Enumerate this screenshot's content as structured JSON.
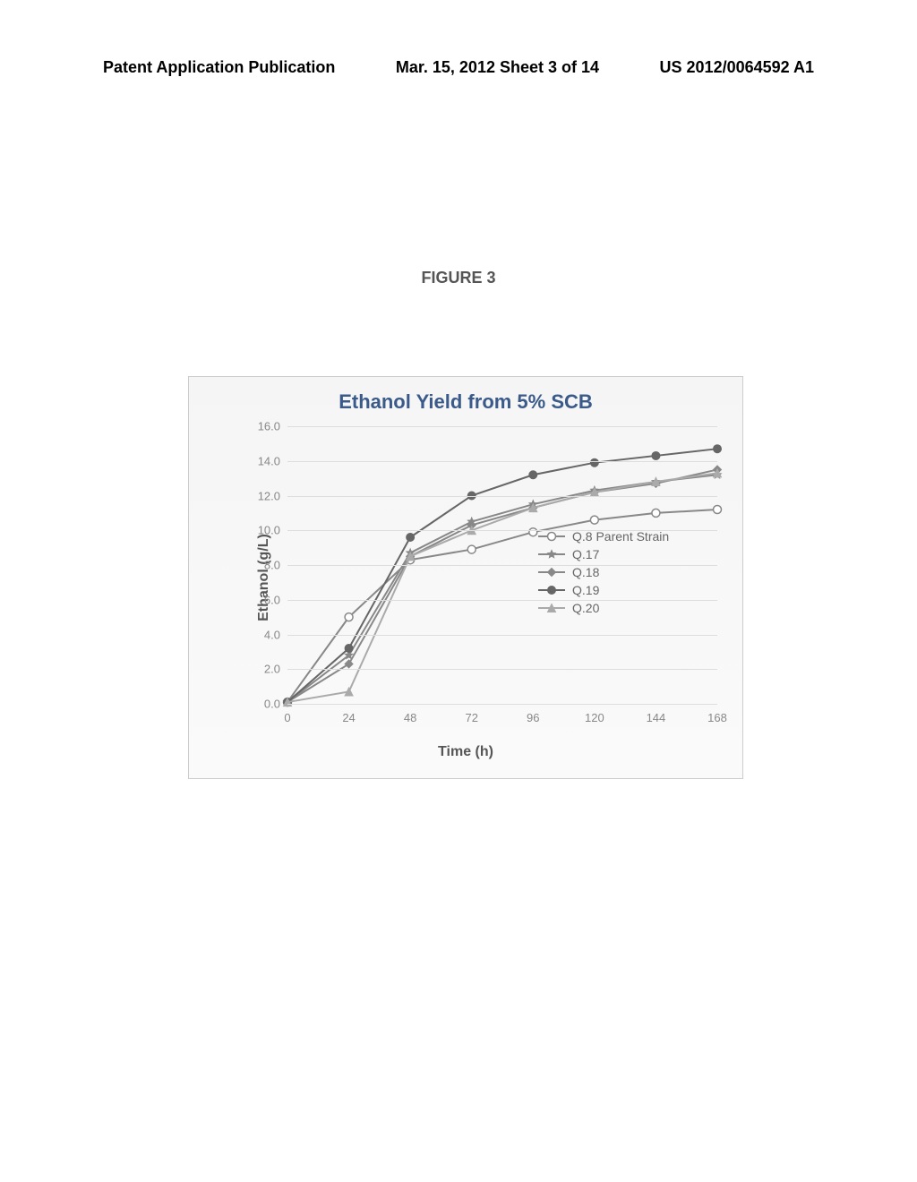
{
  "header": {
    "left": "Patent Application Publication",
    "center": "Mar. 15, 2012  Sheet 3 of 14",
    "right": "US 2012/0064592 A1"
  },
  "figure_label": "FIGURE 3",
  "chart": {
    "type": "line",
    "title": "Ethanol  Yield from 5% SCB",
    "xlabel": "Time (h)",
    "ylabel": "Ethanol (g/L)",
    "xlim": [
      0,
      168
    ],
    "ylim": [
      0,
      16
    ],
    "xtick_step": 24,
    "ytick_step": 2,
    "xticks": [
      0,
      24,
      48,
      72,
      96,
      120,
      144,
      168
    ],
    "yticks": [
      0.0,
      2.0,
      4.0,
      6.0,
      8.0,
      10.0,
      12.0,
      14.0,
      16.0
    ],
    "ytick_labels": [
      "0.0",
      "2.0",
      "4.0",
      "6.0",
      "8.0",
      "10.0",
      "12.0",
      "14.0",
      "16.0"
    ],
    "background_color": "#f5f5f5",
    "grid_color": "#dddddd",
    "title_color": "#3a5a8a",
    "title_fontsize": 22,
    "label_fontsize": 16,
    "tick_fontsize": 13,
    "series": [
      {
        "name": "Q.8 Parent Strain",
        "marker": "circle-open",
        "color": "#888888",
        "x": [
          0,
          24,
          48,
          72,
          96,
          120,
          144,
          168
        ],
        "y": [
          0.1,
          5.0,
          8.3,
          8.9,
          9.9,
          10.6,
          11.0,
          11.2
        ]
      },
      {
        "name": "Q.17",
        "marker": "star",
        "color": "#888888",
        "x": [
          0,
          24,
          48,
          72,
          96,
          120,
          144,
          168
        ],
        "y": [
          0.1,
          2.8,
          8.7,
          10.5,
          11.5,
          12.3,
          12.8,
          13.2
        ]
      },
      {
        "name": "Q.18",
        "marker": "diamond",
        "color": "#888888",
        "x": [
          0,
          24,
          48,
          72,
          96,
          120,
          144,
          168
        ],
        "y": [
          0.1,
          2.3,
          8.5,
          10.3,
          11.3,
          12.2,
          12.7,
          13.5
        ]
      },
      {
        "name": "Q.19",
        "marker": "circle",
        "color": "#666666",
        "x": [
          0,
          24,
          48,
          72,
          96,
          120,
          144,
          168
        ],
        "y": [
          0.1,
          3.2,
          9.6,
          12.0,
          13.2,
          13.9,
          14.3,
          14.7
        ]
      },
      {
        "name": "Q.20",
        "marker": "triangle",
        "color": "#aaaaaa",
        "x": [
          0,
          24,
          48,
          72,
          96,
          120,
          144,
          168
        ],
        "y": [
          0.1,
          0.7,
          8.5,
          10.0,
          11.3,
          12.2,
          12.8,
          13.3
        ]
      }
    ]
  }
}
